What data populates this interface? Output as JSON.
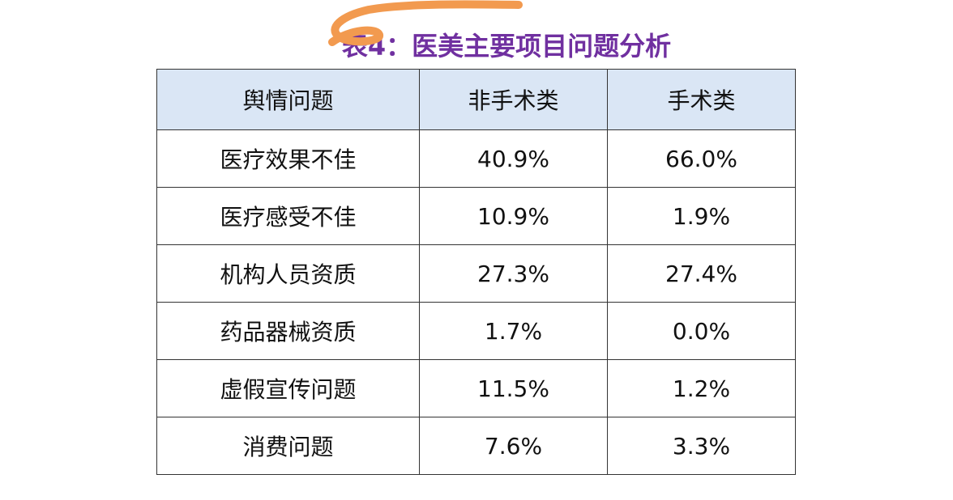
{
  "header": {
    "title": "表4：医美主要项目问题分析"
  },
  "table": {
    "columns": [
      "舆情问题",
      "非手术类",
      "手术类"
    ],
    "rows": [
      [
        "医疗效果不佳",
        "40.9%",
        "66.0%"
      ],
      [
        "医疗感受不佳",
        "10.9%",
        "1.9%"
      ],
      [
        "机构人员资质",
        "27.3%",
        "27.4%"
      ],
      [
        "药品器械资质",
        "1.7%",
        "0.0%"
      ],
      [
        "虚假宣传问题",
        "11.5%",
        "1.2%"
      ],
      [
        "消费问题",
        "7.6%",
        "3.3%"
      ]
    ]
  }
}
